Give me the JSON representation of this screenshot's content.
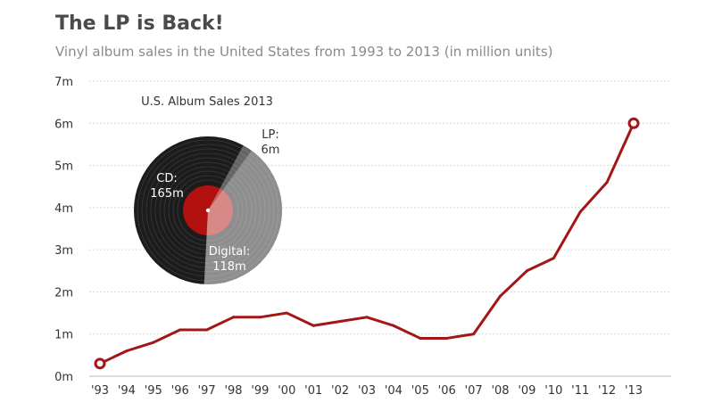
{
  "chart_data": [
    {
      "type": "line",
      "title": "The LP is Back!",
      "subtitle": "Vinyl album sales in the United States from 1993 to 2013 (in million units)",
      "xlabel": "",
      "ylabel": "",
      "categories": [
        "'93",
        "'94",
        "'95",
        "'96",
        "'97",
        "'98",
        "'99",
        "'00",
        "'01",
        "'02",
        "'03",
        "'04",
        "'05",
        "'06",
        "'07",
        "'08",
        "'09",
        "'10",
        "'11",
        "'12",
        "'13"
      ],
      "series": [
        {
          "name": "Vinyl album sales",
          "values": [
            0.3,
            0.6,
            0.8,
            1.1,
            1.1,
            1.4,
            1.4,
            1.5,
            1.2,
            1.3,
            1.4,
            1.2,
            0.9,
            0.9,
            1.0,
            1.9,
            2.5,
            2.8,
            3.9,
            4.6,
            6.0
          ]
        }
      ],
      "ylim": [
        0,
        7
      ],
      "yticks": [
        0,
        1,
        2,
        3,
        4,
        5,
        6,
        7
      ],
      "ytick_labels": [
        "0m",
        "1m",
        "2m",
        "3m",
        "4m",
        "5m",
        "6m",
        "7m"
      ],
      "grid": true,
      "highlighted_points": [
        "'93",
        "'13"
      ]
    },
    {
      "type": "pie",
      "title": "U.S. Album Sales 2013",
      "categories": [
        "CD",
        "Digital",
        "LP"
      ],
      "values": [
        165,
        118,
        6
      ],
      "value_labels": [
        "165m",
        "118m",
        "6m"
      ]
    }
  ],
  "colors": {
    "line": "#a31616",
    "grid": "#d9d9d9",
    "record_black": "#1c1c1c",
    "record_groove": "#3a3a3a",
    "record_label": "#b31010",
    "digital_overlay": "#ffffff",
    "text": "#333333"
  }
}
